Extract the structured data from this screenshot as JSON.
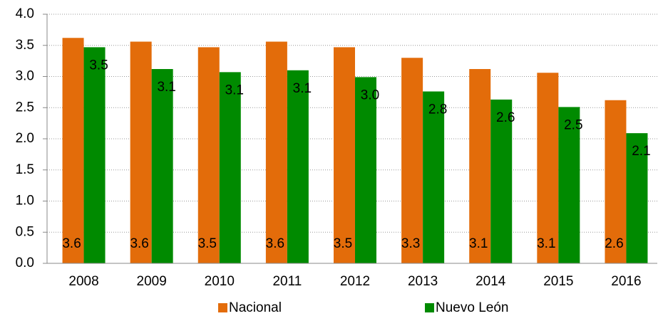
{
  "chart_data": {
    "type": "bar",
    "categories": [
      "2008",
      "2009",
      "2010",
      "2011",
      "2012",
      "2013",
      "2014",
      "2015",
      "2016"
    ],
    "series": [
      {
        "name": "Nacional",
        "color": "#e36c0a",
        "values": [
          3.62,
          3.56,
          3.47,
          3.56,
          3.47,
          3.3,
          3.12,
          3.06,
          2.62
        ],
        "value_labels": [
          "3.6",
          "3.6",
          "3.5",
          "3.6",
          "3.5",
          "3.3",
          "3.1",
          "3.1",
          "2.6"
        ]
      },
      {
        "name": "Nuevo León",
        "color": "#008a00",
        "values": [
          3.47,
          3.12,
          3.07,
          3.1,
          2.99,
          2.76,
          2.63,
          2.51,
          2.09
        ],
        "value_labels": [
          "3.5",
          "3.1",
          "3.1",
          "3.1",
          "3.0",
          "2.8",
          "2.6",
          "2.5",
          "2.1"
        ]
      }
    ],
    "ylim": [
      0,
      4
    ],
    "yticks": [
      {
        "value": 0,
        "label": "0.0"
      },
      0.5,
      {
        "value": 1,
        "label": "1.0"
      },
      1.5,
      {
        "value": 2,
        "label": "2.0"
      },
      2.5,
      {
        "value": 3,
        "label": "3.0"
      },
      3.5,
      {
        "value": 4,
        "label": "4.0"
      }
    ],
    "grid": true,
    "legend": "bottom"
  }
}
